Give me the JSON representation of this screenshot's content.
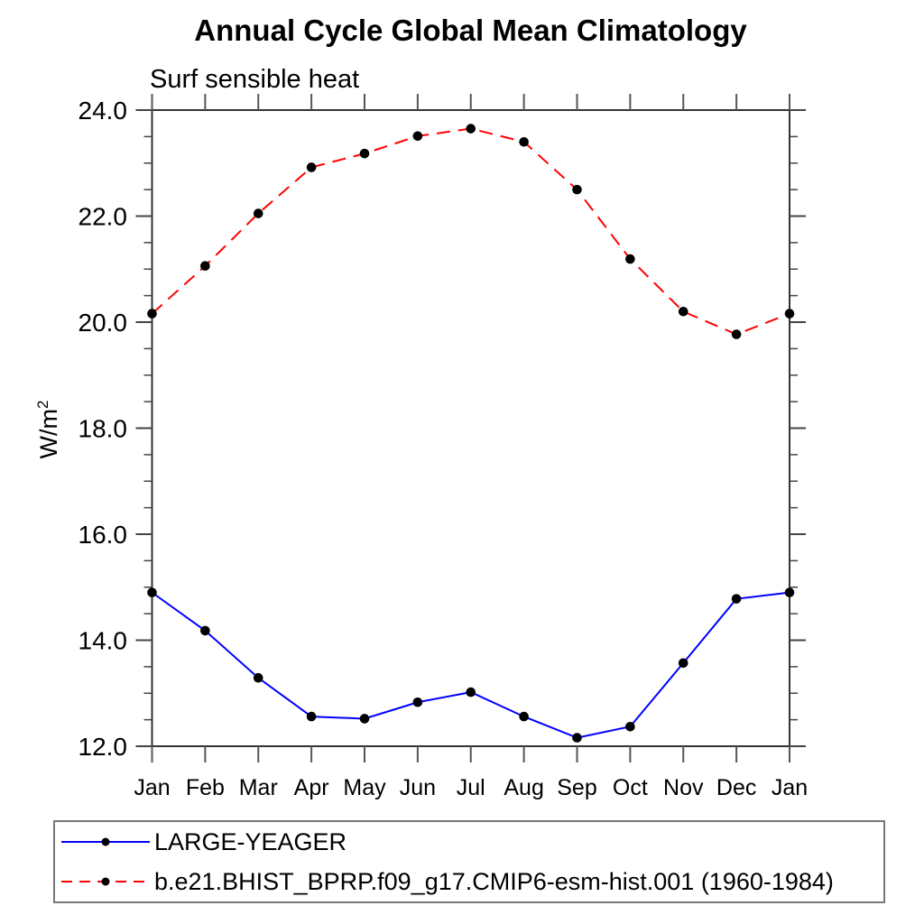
{
  "title": "Annual Cycle Global Mean Climatology",
  "subtitle": "Surf sensible heat",
  "y_axis_label": {
    "base": "W/m",
    "exponent": "2"
  },
  "chart_data": {
    "type": "line",
    "title": "Annual Cycle Global Mean Climatology",
    "subtitle": "Surf sensible heat",
    "ylabel": "W/m²",
    "xlabel": "",
    "ylim": [
      12.0,
      24.0
    ],
    "y_major_tick_step": 2.0,
    "y_minor_tick_step": 0.5,
    "y_major_tick_labels": [
      "12.0",
      "14.0",
      "16.0",
      "18.0",
      "20.0",
      "22.0",
      "24.0"
    ],
    "categories": [
      "Jan",
      "Feb",
      "Mar",
      "Apr",
      "May",
      "Jun",
      "Jul",
      "Aug",
      "Sep",
      "Oct",
      "Nov",
      "Dec",
      "Jan"
    ],
    "grid": false,
    "legend_position": "bottom-left",
    "series": [
      {
        "name": "LARGE-YEAGER",
        "line_color": "#0000ff",
        "line_style": "solid",
        "marker": "filled-circle",
        "marker_color": "#000000",
        "values": [
          14.9,
          14.18,
          13.29,
          12.56,
          12.52,
          12.83,
          13.02,
          12.56,
          12.16,
          12.37,
          13.57,
          14.78,
          14.9
        ]
      },
      {
        "name": "b.e21.BHIST_BPRP.f09_g17.CMIP6-esm-hist.001 (1960-1984)",
        "line_color": "#ff0000",
        "line_style": "dashed",
        "marker": "filled-circle",
        "marker_color": "#000000",
        "values": [
          20.16,
          21.06,
          22.05,
          22.92,
          23.18,
          23.51,
          23.65,
          23.4,
          22.5,
          21.19,
          20.2,
          19.77,
          20.16
        ]
      }
    ]
  }
}
